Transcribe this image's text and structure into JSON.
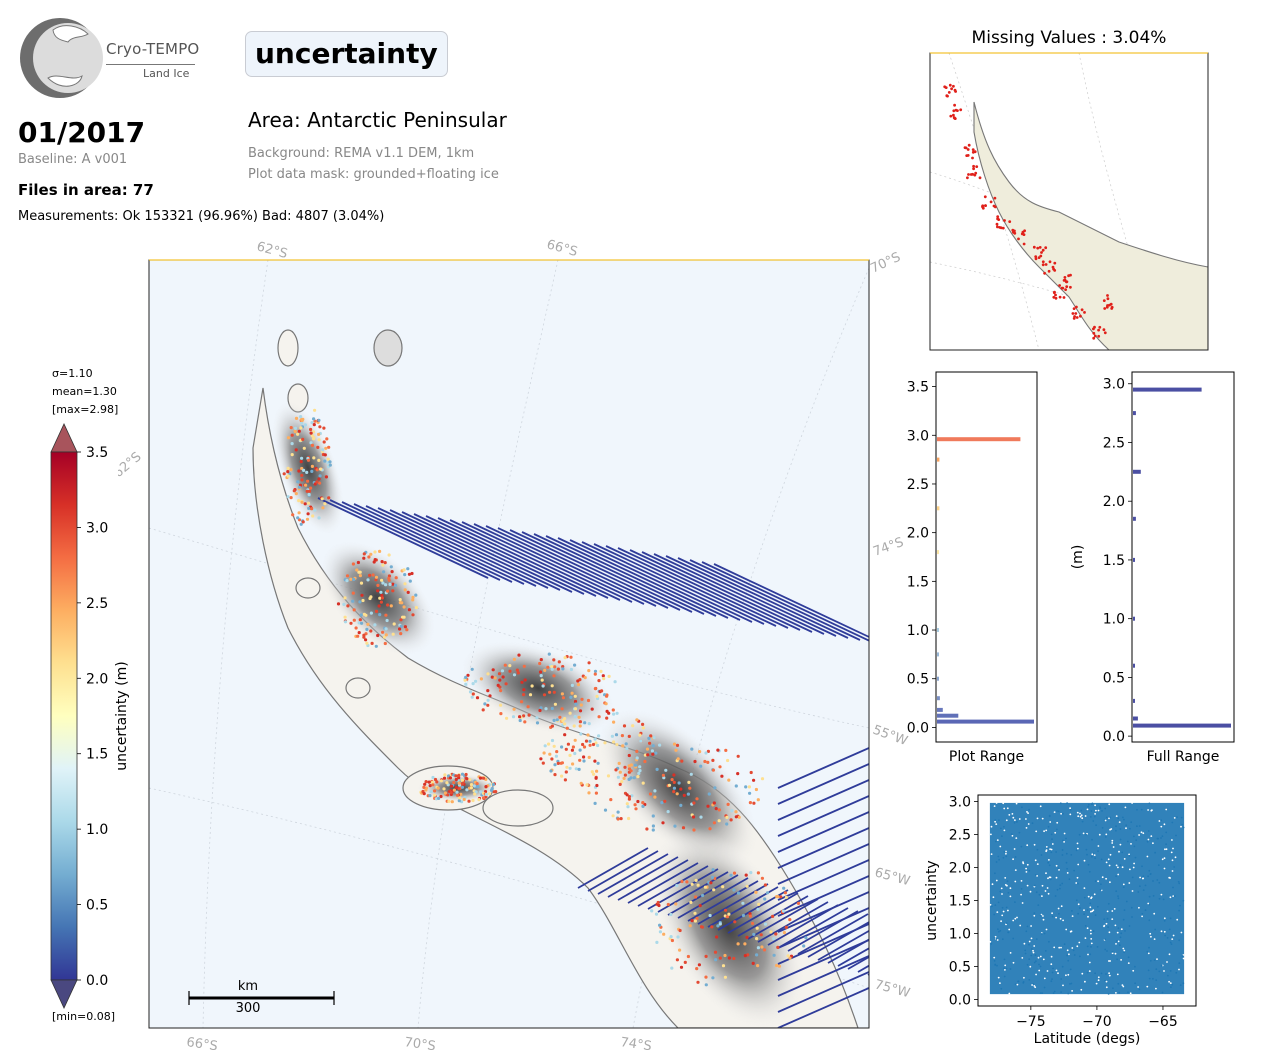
{
  "logo": {
    "name": "Cryo-TEMPO",
    "subtitle": "Land Ice"
  },
  "header": {
    "parameter": "uncertainty",
    "date": "01/2017",
    "baseline": "Baseline: A v001",
    "files": "Files in area: 77",
    "measurements": "Measurements: Ok 153321 (96.96%) Bad: 4807 (3.04%)",
    "area": "Area: Antarctic Peninsular",
    "background": "Background: REMA v1.1 DEM, 1km",
    "mask": "Plot data mask: grounded+floating ice"
  },
  "colorbar": {
    "label": "uncertainty (m)",
    "sigma": "σ=1.10",
    "mean": "mean=1.30",
    "max": "[max=2.98]",
    "min": "[min=0.08]",
    "ticks": [
      "0.0",
      "0.5",
      "1.0",
      "1.5",
      "2.0",
      "2.5",
      "3.0",
      "3.5"
    ],
    "colormap": "RdYlBu_r"
  },
  "map": {
    "grid_labels_top": [
      "62°S",
      "66°S",
      "70°S"
    ],
    "grid_labels_left": [
      "62°S"
    ],
    "grid_labels_right": [
      "74°S",
      "55°W",
      "65°W",
      "75°W"
    ],
    "grid_labels_bottom": [
      "66°S",
      "70°S",
      "74°S"
    ],
    "scale_unit": "km",
    "scale_value": "300",
    "colors": {
      "ocean": "#f0f6fc",
      "land": "#f5f3ee",
      "coast": "#777777"
    }
  },
  "inset": {
    "title": "Missing Values : 3.04%",
    "colors": {
      "ocean": "#ffffff",
      "land": "#efeddc",
      "missing": "#e0201a"
    }
  },
  "chart_data": [
    {
      "type": "bar",
      "orientation": "horizontal",
      "name": "plot-range-histogram",
      "xlabel": "Plot Range",
      "ylim": [
        -0.15,
        3.65
      ],
      "yticks": [
        "0.0",
        "0.5",
        "1.0",
        "1.5",
        "2.0",
        "2.5",
        "3.0",
        "3.5"
      ],
      "bins": [
        {
          "y": 0.06,
          "count": 1.0,
          "color": "#5a67b5"
        },
        {
          "y": 0.12,
          "count": 0.22,
          "color": "#6070b8"
        },
        {
          "y": 0.18,
          "count": 0.06,
          "color": "#6878bc"
        },
        {
          "y": 0.3,
          "count": 0.03,
          "color": "#7a8fc4"
        },
        {
          "y": 0.5,
          "count": 0.02,
          "color": "#8aa5cf"
        },
        {
          "y": 0.75,
          "count": 0.015,
          "color": "#9ab9d8"
        },
        {
          "y": 1.0,
          "count": 0.012,
          "color": "#aacde2"
        },
        {
          "y": 1.8,
          "count": 0.012,
          "color": "#fde7a6"
        },
        {
          "y": 2.25,
          "count": 0.025,
          "color": "#fdd38a"
        },
        {
          "y": 2.75,
          "count": 0.025,
          "color": "#f9a35f"
        },
        {
          "y": 2.96,
          "count": 0.86,
          "color": "#f07a5b"
        }
      ]
    },
    {
      "type": "bar",
      "orientation": "horizontal",
      "name": "full-range-histogram",
      "xlabel": "Full Range",
      "ylabel": "(m)",
      "ylim": [
        -0.05,
        3.1
      ],
      "yticks": [
        "0.0",
        "0.5",
        "1.0",
        "1.5",
        "2.0",
        "2.5",
        "3.0"
      ],
      "bins": [
        {
          "y": 0.09,
          "count": 1.0
        },
        {
          "y": 0.15,
          "count": 0.05
        },
        {
          "y": 0.3,
          "count": 0.02
        },
        {
          "y": 0.6,
          "count": 0.015
        },
        {
          "y": 1.0,
          "count": 0.012
        },
        {
          "y": 1.5,
          "count": 0.012
        },
        {
          "y": 1.85,
          "count": 0.03
        },
        {
          "y": 2.25,
          "count": 0.08
        },
        {
          "y": 2.75,
          "count": 0.03
        },
        {
          "y": 2.95,
          "count": 0.7
        }
      ]
    },
    {
      "type": "scatter",
      "name": "uncertainty-vs-latitude",
      "xlabel": "Latitude (degs)",
      "ylabel": "uncertainty",
      "xlim": [
        -79,
        -62.5
      ],
      "ylim": [
        -0.1,
        3.1
      ],
      "xticks": [
        "−75",
        "−70",
        "−65"
      ],
      "yticks": [
        "0.0",
        "0.5",
        "1.0",
        "1.5",
        "2.0",
        "2.5",
        "3.0"
      ],
      "x_range": [
        -78.1,
        -63.4
      ],
      "y_range": [
        0.08,
        2.98
      ],
      "color": "#1f77b4"
    }
  ]
}
